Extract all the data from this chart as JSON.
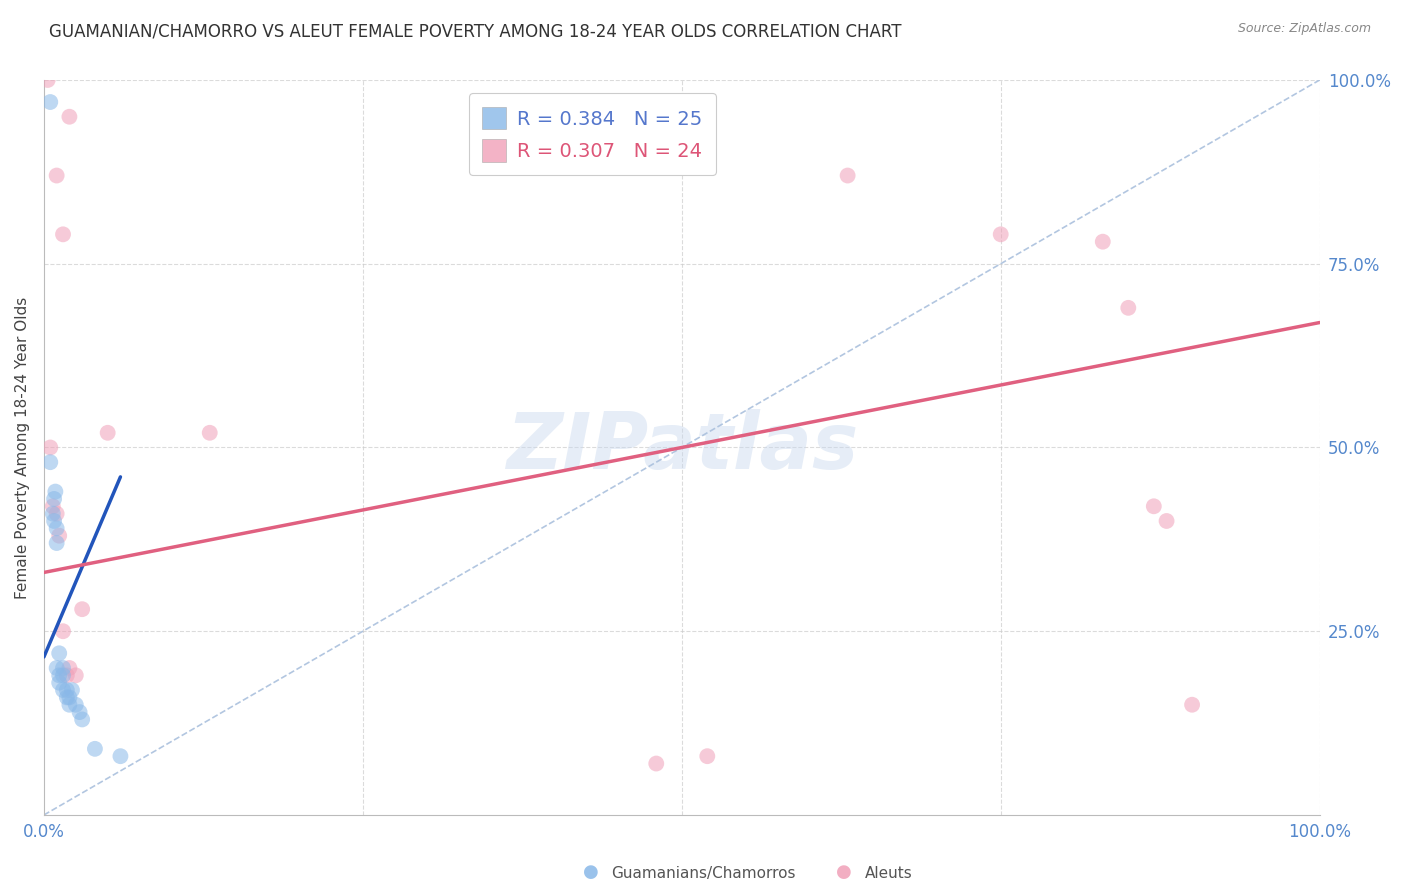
{
  "title": "GUAMANIAN/CHAMORRO VS ALEUT FEMALE POVERTY AMONG 18-24 YEAR OLDS CORRELATION CHART",
  "source": "Source: ZipAtlas.com",
  "ylabel": "Female Poverty Among 18-24 Year Olds",
  "xlim": [
    0,
    1
  ],
  "ylim": [
    0,
    1
  ],
  "xtick_labels": [
    "0.0%",
    "",
    "",
    "",
    "100.0%"
  ],
  "ytick_labels": [
    "",
    "25.0%",
    "50.0%",
    "75.0%",
    "100.0%"
  ],
  "legend_r1": "R = 0.384   N = 25",
  "legend_r2": "R = 0.307   N = 24",
  "footer_label1": "Guamanians/Chamorros",
  "footer_label2": "Aleuts",
  "background_color": "#ffffff",
  "grid_color": "#cccccc",
  "watermark": "ZIPatlas",
  "blue_scatter": [
    [
      0.005,
      0.97
    ],
    [
      0.005,
      0.48
    ],
    [
      0.007,
      0.41
    ],
    [
      0.008,
      0.4
    ],
    [
      0.008,
      0.43
    ],
    [
      0.009,
      0.44
    ],
    [
      0.01,
      0.39
    ],
    [
      0.01,
      0.37
    ],
    [
      0.01,
      0.2
    ],
    [
      0.012,
      0.19
    ],
    [
      0.012,
      0.22
    ],
    [
      0.012,
      0.18
    ],
    [
      0.015,
      0.2
    ],
    [
      0.015,
      0.19
    ],
    [
      0.015,
      0.17
    ],
    [
      0.018,
      0.17
    ],
    [
      0.018,
      0.16
    ],
    [
      0.02,
      0.16
    ],
    [
      0.02,
      0.15
    ],
    [
      0.022,
      0.17
    ],
    [
      0.025,
      0.15
    ],
    [
      0.028,
      0.14
    ],
    [
      0.03,
      0.13
    ],
    [
      0.04,
      0.09
    ],
    [
      0.06,
      0.08
    ]
  ],
  "pink_scatter": [
    [
      0.003,
      1.0
    ],
    [
      0.01,
      0.87
    ],
    [
      0.015,
      0.79
    ],
    [
      0.005,
      0.5
    ],
    [
      0.007,
      0.42
    ],
    [
      0.01,
      0.41
    ],
    [
      0.012,
      0.38
    ],
    [
      0.015,
      0.25
    ],
    [
      0.018,
      0.19
    ],
    [
      0.02,
      0.2
    ],
    [
      0.025,
      0.19
    ],
    [
      0.03,
      0.28
    ],
    [
      0.05,
      0.52
    ],
    [
      0.13,
      0.52
    ],
    [
      0.48,
      0.07
    ],
    [
      0.52,
      0.08
    ],
    [
      0.63,
      0.87
    ],
    [
      0.75,
      0.79
    ],
    [
      0.83,
      0.78
    ],
    [
      0.85,
      0.69
    ],
    [
      0.87,
      0.42
    ],
    [
      0.88,
      0.4
    ],
    [
      0.9,
      0.15
    ],
    [
      0.02,
      0.95
    ]
  ],
  "blue_line_x": [
    0.0,
    0.06
  ],
  "blue_line_y": [
    0.215,
    0.46
  ],
  "pink_line_x": [
    0.0,
    1.0
  ],
  "pink_line_y": [
    0.33,
    0.67
  ],
  "dash_line_x": [
    0.0,
    1.0
  ],
  "dash_line_y": [
    0.0,
    1.0
  ],
  "blue_scatter_color": "#89b8e8",
  "pink_scatter_color": "#f0a0b8",
  "blue_line_color": "#2255bb",
  "pink_line_color": "#e06080",
  "dash_line_color": "#aac0dd",
  "scatter_size": 130,
  "scatter_alpha": 0.55,
  "title_fontsize": 12,
  "axis_tick_color": "#5588cc",
  "axis_label_color": "#444444",
  "source_color": "#888888",
  "legend_color1": "#5577cc",
  "legend_color2": "#dd5577"
}
